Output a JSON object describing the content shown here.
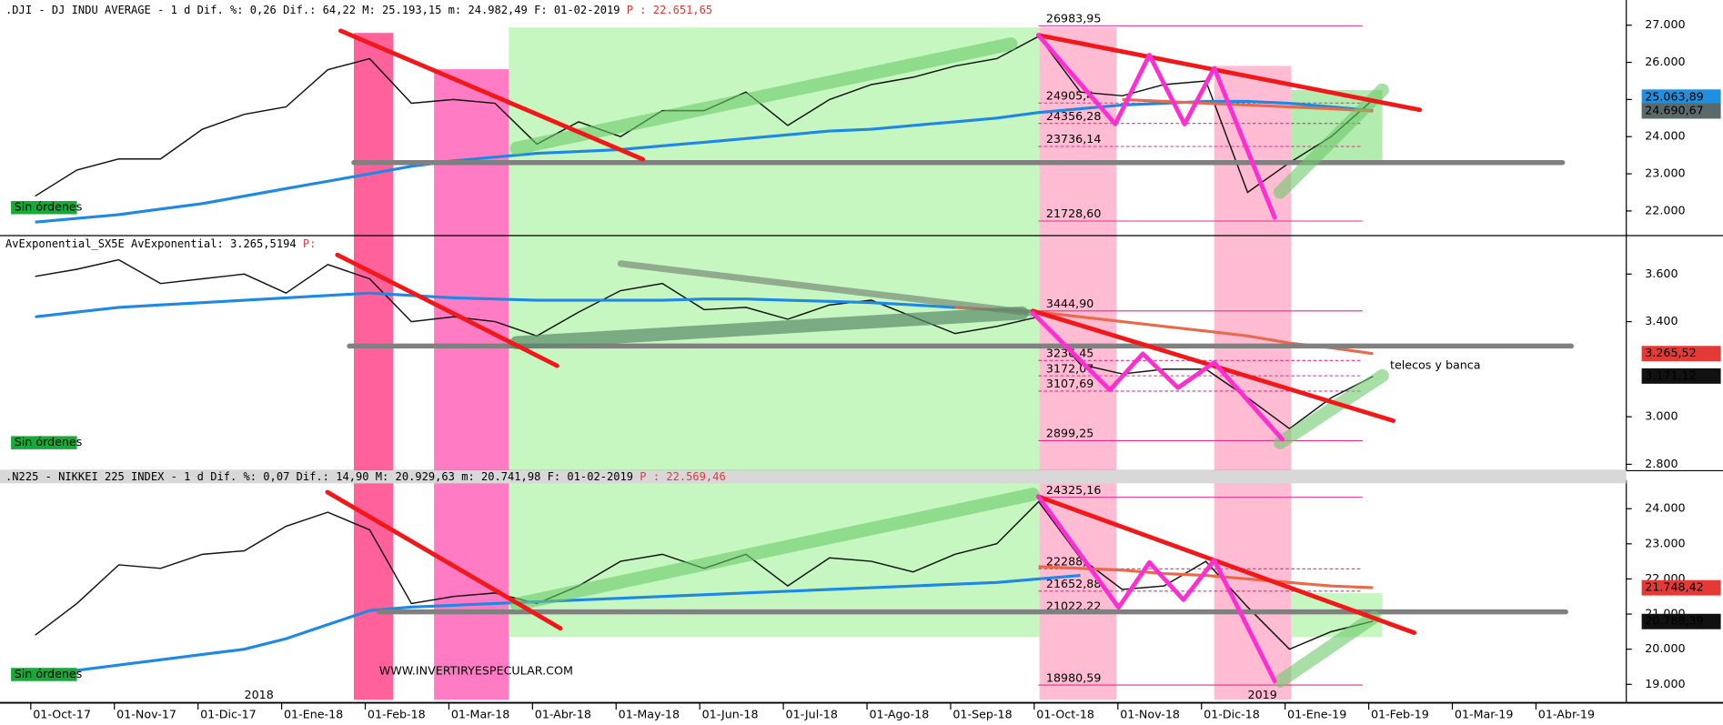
{
  "chart_data": [
    {
      "type": "line",
      "header": ".DJI - DJ INDU AVERAGE -  1 d Dif. %: 0,26 Dif.: 64,22 M: 25.193,15 m: 24.982,49 F: 01-02-2019",
      "header_p": "P : 22.651,65",
      "status": "Sin órdenes",
      "ylim": [
        21380,
        27560
      ],
      "yticks": [
        {
          "value": 22000,
          "label": "22.000"
        },
        {
          "value": 23000,
          "label": "23.000"
        },
        {
          "value": 24000,
          "label": "24.000"
        },
        {
          "value": 25000,
          "label": "25.000"
        },
        {
          "value": 26000,
          "label": "26.000"
        },
        {
          "value": 27000,
          "label": "27.000"
        }
      ],
      "levels": [
        {
          "value": 26983.95,
          "label": "26983,95"
        },
        {
          "value": 24905.4,
          "label": "24905,4"
        },
        {
          "value": 24356.28,
          "label": "24356,28"
        },
        {
          "value": 23736.14,
          "label": "23736,14"
        },
        {
          "value": 21728.6,
          "label": "21728,60"
        }
      ],
      "last_values": [
        {
          "value": 25063.89,
          "label": "25.063,89",
          "color": "#1f8fe0"
        },
        {
          "value": 24690.67,
          "label": "24.690,67",
          "color": "#5a6a6a"
        }
      ],
      "series": [
        {
          "color": "#111111",
          "values": [
            22400,
            23100,
            23400,
            23400,
            24200,
            24600,
            24800,
            25800,
            26100,
            24900,
            25000,
            24900,
            23800,
            24400,
            24000,
            24700,
            24700,
            25200,
            24300,
            25000,
            25400,
            25600,
            25900,
            26100,
            26700,
            25200,
            25100,
            25400,
            25500,
            22500,
            23300,
            24000,
            25000,
            null,
            null,
            null,
            null
          ]
        },
        {
          "color": "#1e88e5",
          "values": [
            21700,
            21800,
            21900,
            22050,
            22200,
            22400,
            22600,
            22800,
            23000,
            23200,
            23350,
            23450,
            23550,
            23600,
            23650,
            23750,
            23850,
            23950,
            24050,
            24150,
            24200,
            24300,
            24400,
            24500,
            24650,
            24750,
            24850,
            24900,
            24950,
            24950,
            24900,
            24800,
            24700,
            null,
            null,
            null,
            null
          ]
        },
        {
          "color": "#e86a4a",
          "values": [
            null,
            null,
            null,
            null,
            null,
            null,
            null,
            null,
            null,
            null,
            null,
            null,
            null,
            null,
            null,
            null,
            null,
            null,
            null,
            null,
            null,
            null,
            null,
            null,
            null,
            null,
            25000,
            24950,
            24900,
            24850,
            24800,
            24750,
            24690,
            null,
            null,
            null,
            null
          ]
        }
      ]
    },
    {
      "type": "line",
      "header": "AvExponential_SX5E AvExponential: 3.265,5194",
      "header_p": "P:",
      "status": "Sin órdenes",
      "annotation": "telecos  y banca",
      "ylim": [
        2780,
        3750
      ],
      "yticks": [
        {
          "value": 2800,
          "label": "2.800"
        },
        {
          "value": 3000,
          "label": "3.000"
        },
        {
          "value": 3400,
          "label": "3.400"
        },
        {
          "value": 3600,
          "label": "3.600"
        }
      ],
      "levels": [
        {
          "value": 3444.9,
          "label": "3444,90"
        },
        {
          "value": 3236.45,
          "label": "3236,45"
        },
        {
          "value": 3172.07,
          "label": "3172,07"
        },
        {
          "value": 3107.69,
          "label": "3107,69"
        },
        {
          "value": 2899.25,
          "label": "2899,25"
        }
      ],
      "last_values": [
        {
          "value": 3265.52,
          "label": "3.265,52",
          "color": "#e53935"
        },
        {
          "value": 3171.12,
          "label": "3.171,12",
          "color": "#111111"
        }
      ],
      "series": [
        {
          "color": "#111111",
          "values": [
            3590,
            3620,
            3660,
            3560,
            3580,
            3600,
            3520,
            3640,
            3580,
            3400,
            3420,
            3400,
            3340,
            3440,
            3530,
            3560,
            3450,
            3460,
            3410,
            3470,
            3490,
            3420,
            3350,
            3380,
            3420,
            3220,
            3180,
            3200,
            3200,
            3080,
            2950,
            3080,
            3170,
            null,
            null,
            null,
            null
          ]
        },
        {
          "color": "#1e88e5",
          "values": [
            3420,
            3440,
            3460,
            3470,
            3480,
            3490,
            3500,
            3510,
            3520,
            3510,
            3500,
            3495,
            3490,
            3490,
            3490,
            3490,
            3495,
            3495,
            3490,
            3485,
            3480,
            3470,
            3460,
            3450,
            null,
            null,
            null,
            null,
            null,
            null,
            null,
            null,
            null,
            null,
            null,
            null,
            null
          ]
        },
        {
          "color": "#e86a4a",
          "values": [
            null,
            null,
            null,
            null,
            null,
            null,
            null,
            null,
            null,
            null,
            null,
            null,
            null,
            null,
            null,
            null,
            null,
            null,
            null,
            null,
            null,
            null,
            3460,
            3450,
            3440,
            3420,
            3400,
            3380,
            3360,
            3340,
            3310,
            3290,
            3265,
            null,
            null,
            null,
            null
          ]
        }
      ]
    },
    {
      "type": "line",
      "header": ".N225 - NIKKEI 225 INDEX -  1 d Dif. %: 0,07 Dif.: 14,90 M: 20.929,63 m: 20.741,98 F: 01-02-2019",
      "header_p": "P : 22.569,46",
      "status": "Sin órdenes",
      "watermark": "WWW.INVERTIRYESPECULAR.COM",
      "ylim": [
        18530,
        24690
      ],
      "yticks": [
        {
          "value": 19000,
          "label": "19.000"
        },
        {
          "value": 20000,
          "label": "20.000"
        },
        {
          "value": 21000,
          "label": "21.000"
        },
        {
          "value": 22000,
          "label": "22.000"
        },
        {
          "value": 23000,
          "label": "23.000"
        },
        {
          "value": 24000,
          "label": "24.000"
        }
      ],
      "levels": [
        {
          "value": 24325.16,
          "label": "24325,16"
        },
        {
          "value": 22288,
          "label": "22288,"
        },
        {
          "value": 21652.88,
          "label": "21652,88"
        },
        {
          "value": 21022.22,
          "label": "21022,22"
        },
        {
          "value": 18980.59,
          "label": "18980,59"
        }
      ],
      "last_values": [
        {
          "value": 21748.42,
          "label": "21.748,42",
          "color": "#e53935"
        },
        {
          "value": 20788.39,
          "label": "20.788,39",
          "color": "#111111"
        }
      ],
      "categories": [
        "01-Oct-17",
        null,
        "01-Nov-17",
        null,
        "01-Dic-17",
        null,
        "01-Ene-18",
        null,
        "01-Feb-18",
        null,
        "01-Mar-18",
        null,
        "01-Abr-18",
        null,
        "01-May-18",
        null,
        "01-Jun-18",
        null,
        "01-Jul-18",
        null,
        "01-Ago-18",
        null,
        "01-Sep-18",
        null,
        "01-Oct-18",
        null,
        "01-Nov-18",
        null,
        "01-Dic-18",
        null,
        "01-Ene-19",
        null,
        "01-Feb-19",
        null,
        "01-Mar-19",
        null,
        "01-Abr-19"
      ],
      "year_labels": [
        "2018",
        "2019"
      ],
      "series": [
        {
          "color": "#111111",
          "values": [
            20400,
            21300,
            22400,
            22300,
            22700,
            22800,
            23500,
            23900,
            23400,
            21300,
            21500,
            21600,
            21300,
            21800,
            22500,
            22700,
            22300,
            22700,
            21800,
            22600,
            22500,
            22200,
            22700,
            23000,
            24200,
            22600,
            21700,
            21800,
            22500,
            21200,
            20000,
            20500,
            20800,
            null,
            null,
            null,
            null
          ]
        },
        {
          "color": "#1e88e5",
          "values": [
            19300,
            19400,
            19550,
            19700,
            19850,
            20000,
            20300,
            20700,
            21100,
            21200,
            21250,
            21300,
            21350,
            21400,
            21450,
            21500,
            21550,
            21600,
            21650,
            21700,
            21750,
            21800,
            21850,
            21900,
            22000,
            22100,
            null,
            null,
            null,
            null,
            null,
            null,
            null,
            null,
            null,
            null,
            null
          ]
        },
        {
          "color": "#e86a4a",
          "values": [
            null,
            null,
            null,
            null,
            null,
            null,
            null,
            null,
            null,
            null,
            null,
            null,
            null,
            null,
            null,
            null,
            null,
            null,
            null,
            null,
            null,
            null,
            null,
            null,
            22350,
            22300,
            22250,
            22150,
            22100,
            22000,
            21900,
            21800,
            21750,
            null,
            null,
            null,
            null
          ]
        }
      ]
    }
  ]
}
